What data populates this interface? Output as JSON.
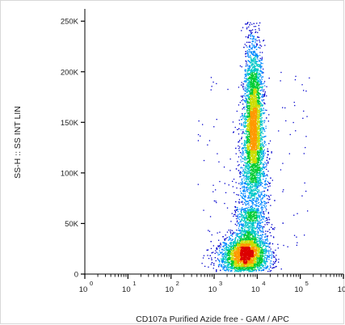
{
  "chart_data": {
    "type": "scatter",
    "subtype": "flow-cytometry-density-dot-plot",
    "xlabel": "CD107a Purified Azide free - GAM / APC",
    "ylabel": "SS-H :: SS INT LIN",
    "x_scale": "log",
    "y_scale": "linear",
    "xlim": [
      1,
      1000000
    ],
    "ylim": [
      0,
      262144
    ],
    "x_ticks": [
      {
        "base": "10",
        "exp": "0",
        "value": 1
      },
      {
        "base": "10",
        "exp": "1",
        "value": 10
      },
      {
        "base": "10",
        "exp": "2",
        "value": 100
      },
      {
        "base": "10",
        "exp": "3",
        "value": 1000
      },
      {
        "base": "10",
        "exp": "4",
        "value": 10000
      },
      {
        "base": "10",
        "exp": "5",
        "value": 100000
      },
      {
        "base": "10",
        "exp": "6",
        "value": 1000000
      }
    ],
    "y_ticks": [
      {
        "label": "0",
        "value": 0
      },
      {
        "label": "50K",
        "value": 50000
      },
      {
        "label": "100K",
        "value": 100000
      },
      {
        "label": "150K",
        "value": 150000
      },
      {
        "label": "200K",
        "value": 200000
      },
      {
        "label": "250K",
        "value": 250000
      }
    ],
    "grid": false,
    "color_scale": [
      "#0000cc",
      "#0088ff",
      "#00c8c8",
      "#00cc33",
      "#ccdd00",
      "#ff9900",
      "#dd0000"
    ],
    "populations": [
      {
        "x_center": 8000,
        "y_center": 140000,
        "x_spread_log": 0.11,
        "y_spread": 45000,
        "y_range": [
          40000,
          250000
        ],
        "density": "high"
      },
      {
        "x_center": 5000,
        "y_center": 18000,
        "x_spread_log": 0.28,
        "y_spread": 10000,
        "y_range": [
          0,
          45000
        ],
        "density": "high"
      }
    ]
  }
}
